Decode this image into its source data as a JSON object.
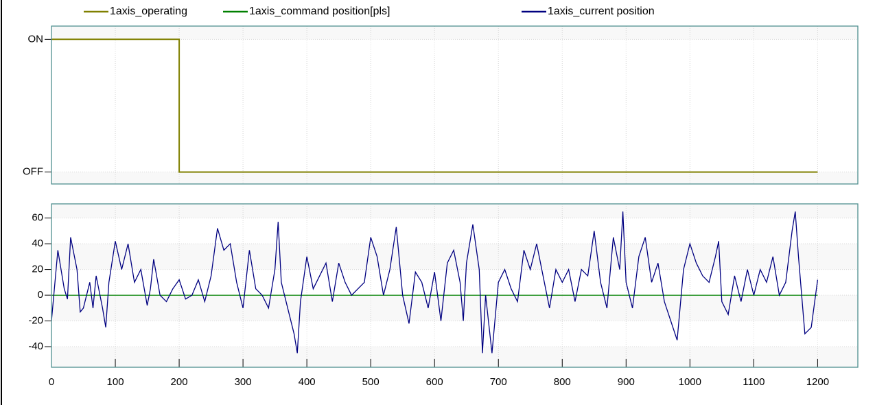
{
  "chart_data": [
    {
      "type": "line",
      "series": [
        {
          "name": "1axis_operating",
          "color": "#808000",
          "x": [
            0,
            200,
            200,
            1200
          ],
          "values": [
            1,
            1,
            0,
            0
          ]
        }
      ],
      "xlim": [
        0,
        1263
      ],
      "ylim": [
        -0.09,
        1.1
      ],
      "yticks": [
        {
          "value": 1,
          "label": "ON"
        },
        {
          "value": 0,
          "label": "OFF"
        }
      ],
      "grid": true
    },
    {
      "type": "line",
      "series": [
        {
          "name": "1axis_command position[pls]",
          "color": "#008000",
          "x": [
            0,
            1200
          ],
          "values": [
            0,
            0
          ]
        },
        {
          "name": "1axis_current position",
          "color": "#000080",
          "x": [
            0,
            10,
            20,
            25,
            30,
            40,
            45,
            50,
            60,
            65,
            70,
            80,
            85,
            90,
            100,
            110,
            120,
            130,
            140,
            150,
            155,
            160,
            170,
            180,
            190,
            200,
            210,
            220,
            230,
            240,
            250,
            260,
            270,
            280,
            290,
            300,
            310,
            320,
            330,
            340,
            350,
            355,
            360,
            370,
            380,
            385,
            390,
            400,
            410,
            420,
            430,
            440,
            450,
            460,
            470,
            480,
            490,
            500,
            510,
            520,
            530,
            540,
            550,
            560,
            570,
            580,
            590,
            600,
            610,
            620,
            630,
            640,
            645,
            650,
            660,
            670,
            675,
            680,
            690,
            700,
            710,
            720,
            730,
            740,
            750,
            760,
            770,
            780,
            790,
            800,
            810,
            820,
            830,
            840,
            850,
            860,
            870,
            880,
            890,
            895,
            900,
            910,
            920,
            930,
            940,
            950,
            960,
            970,
            980,
            990,
            1000,
            1010,
            1020,
            1030,
            1040,
            1045,
            1050,
            1060,
            1070,
            1080,
            1090,
            1100,
            1110,
            1120,
            1130,
            1140,
            1150,
            1160,
            1165,
            1170,
            1180,
            1190,
            1200
          ],
          "values": [
            -20,
            35,
            5,
            -3,
            45,
            20,
            -13,
            -10,
            10,
            -10,
            15,
            -10,
            -25,
            10,
            42,
            20,
            40,
            10,
            20,
            -8,
            5,
            28,
            0,
            -5,
            5,
            12,
            -3,
            0,
            12,
            -5,
            15,
            52,
            35,
            40,
            10,
            -10,
            35,
            5,
            0,
            -10,
            20,
            57,
            10,
            -10,
            -30,
            -45,
            -5,
            30,
            5,
            15,
            25,
            -5,
            25,
            10,
            0,
            5,
            10,
            45,
            30,
            0,
            20,
            53,
            0,
            -22,
            18,
            10,
            -10,
            18,
            -20,
            25,
            35,
            10,
            -20,
            25,
            55,
            20,
            -45,
            0,
            -45,
            10,
            20,
            5,
            -5,
            35,
            20,
            40,
            15,
            -10,
            20,
            10,
            20,
            -5,
            20,
            15,
            50,
            10,
            -10,
            45,
            20,
            65,
            10,
            -10,
            30,
            45,
            10,
            25,
            -5,
            -20,
            -35,
            20,
            40,
            25,
            15,
            10,
            30,
            42,
            -5,
            -15,
            15,
            -5,
            20,
            0,
            20,
            10,
            30,
            0,
            10,
            50,
            65,
            30,
            -30,
            -25,
            12
          ]
        }
      ],
      "xlim": [
        0,
        1263
      ],
      "ylim": [
        -56,
        71
      ],
      "xticks": [
        0,
        100,
        200,
        300,
        400,
        500,
        600,
        700,
        800,
        900,
        1000,
        1100,
        1200
      ],
      "yticks": [
        -40,
        -20,
        0,
        20,
        40,
        60
      ],
      "grid": true
    }
  ]
}
